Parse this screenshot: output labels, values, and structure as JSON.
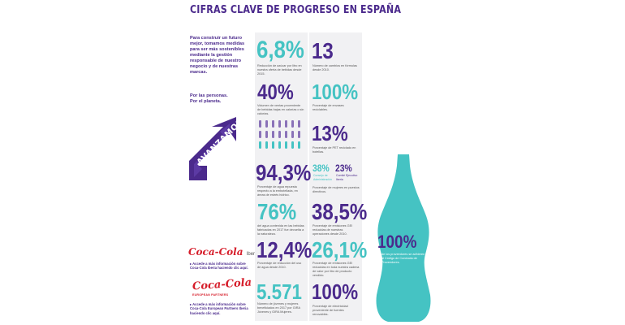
{
  "title": "CIFRAS CLAVE DE PROGRESO EN ESPAÑA",
  "intro": "Para construir un futuro mejor, tomamos medidas para ser más sostenibles mediante la gestión responsable de nuestro negocio y de nuestras marcas.",
  "intro_tagline_1": "Por las personas.",
  "intro_tagline_2": "Por el planeta.",
  "arrow_text": "AVANZAMOS",
  "colors": {
    "purple": "#4b2a8c",
    "teal": "#45c3c3",
    "red": "#d61d2a",
    "panel": "#f1f1f3"
  },
  "stats": {
    "s1": {
      "value": "6,8%",
      "desc": "Reducción de azúcar por litro en nuestra oferta de bebidas desde 2015."
    },
    "s2": {
      "value": "40%",
      "desc": "Volumen de ventas proveniente de bebidas bajas en calorías o sin calorías."
    },
    "s3": {
      "value": "94,3%",
      "desc": "Porcentaje de agua repuesta respecto a la embotellada, en áreas de estrés hídrico."
    },
    "s4": {
      "value": "76%",
      "desc": "del agua contenida en las bebidas fabricadas en 2017 fue devuelta a la naturaleza."
    },
    "s5": {
      "value": "12,4%",
      "desc": "Porcentaje de reducción del uso de agua desde 2010."
    },
    "s6": {
      "value": "5.571",
      "desc": "Número de jóvenes y mujeres beneficiados en 2017 por GIRA Jóvenes y GIRA Mujeres."
    },
    "r1": {
      "value": "13",
      "desc": "Número de cambios en fórmulas desde 2010."
    },
    "r2": {
      "value": "100%",
      "desc": "Porcentaje de envases reciclables."
    },
    "r3": {
      "value": "13%",
      "desc": "Porcentaje de PET reciclado en botellas."
    },
    "r4a": {
      "value": "38%",
      "desc": "Consejo de Administración"
    },
    "r4b": {
      "value": "23%",
      "desc": "Comité Ejecutivo Iberia"
    },
    "r4": {
      "desc": "Porcentaje de mujeres en puestos directivos."
    },
    "r5": {
      "value": "38,5%",
      "desc": "Porcentaje de emisiones GEI reducidas de nuestras operaciones desde 2010."
    },
    "r6": {
      "value": "26,1%",
      "desc": "Porcentaje de emisiones GEI reducidas en toda nuestra cadena de valor por litro de producto vendido."
    },
    "r7": {
      "value": "100%",
      "desc": "Porcentaje de electricidad proveniente de fuentes renovables."
    }
  },
  "bottle": {
    "value": "100%",
    "desc": "de los proveedores se adhieren al Código de Conducta de Proveedores."
  },
  "logos": {
    "cc_iberia": "Coca-Cola",
    "cc_iberia_suffix": "Iberia",
    "cc_iberia_link": "Accede a más información sobre Coca-Cola Iberia haciendo clic aquí.",
    "ccep": "Coca-Cola",
    "ccep_suffix": "EUROPEAN PARTNERS",
    "ccep_link": "Accede a más información sobre Coca-Cola European Partners Iberia haciendo clic aquí."
  }
}
